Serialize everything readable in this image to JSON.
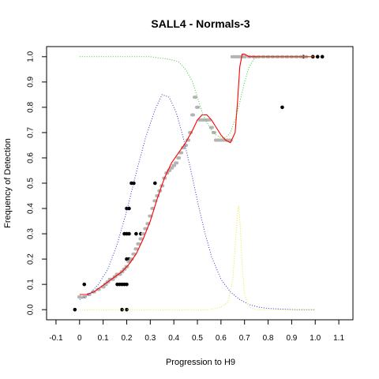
{
  "chart_data": {
    "type": "scatter",
    "title": "SALL4 - Normals-3",
    "xlabel": "Progression to H9",
    "ylabel": "Frequency of Detection",
    "xlim": [
      -0.14,
      1.16
    ],
    "ylim": [
      -0.04,
      1.04
    ],
    "xticks": [
      "-0.1",
      "0",
      "0.1",
      "0.2",
      "0.3",
      "0.4",
      "0.5",
      "0.6",
      "0.7",
      "0.8",
      "0.9",
      "1.0",
      "1.1"
    ],
    "yticks": [
      "0.0",
      "0.1",
      "0.2",
      "0.3",
      "0.4",
      "0.5",
      "0.6",
      "0.7",
      "0.8",
      "0.9",
      "1.0"
    ],
    "grid": false,
    "colors": {
      "black_points": "#000000",
      "gray_points": "#b4b4b4",
      "red_fit": "#ff0000",
      "blue_density": "#3333cc",
      "green_curve": "#33cc33",
      "yellow_curve": "#e6e633"
    },
    "series": [
      {
        "kind": "points",
        "color": "#000000",
        "x": [
          -0.02,
          0.02,
          0.16,
          0.17,
          0.18,
          0.19,
          0.2,
          0.2,
          0.21,
          0.19,
          0.2,
          0.2,
          0.21,
          0.21,
          0.22,
          0.23,
          0.24,
          0.26,
          0.32,
          0.18,
          0.2,
          0.86,
          0.95,
          0.99,
          1.01,
          1.03
        ],
        "y": [
          0.0,
          0.1,
          0.1,
          0.1,
          0.1,
          0.1,
          0.1,
          0.2,
          0.2,
          0.3,
          0.3,
          0.4,
          0.4,
          0.3,
          0.5,
          0.5,
          0.3,
          0.3,
          0.5,
          0.0,
          0.0,
          0.8,
          1.0,
          1.0,
          1.0,
          1.0
        ]
      },
      {
        "kind": "points",
        "color": "#b4b4b4",
        "x": [
          0.0,
          0.02,
          0.04,
          0.06,
          0.08,
          0.1,
          0.11,
          0.12,
          0.13,
          0.14,
          0.15,
          0.16,
          0.17,
          0.18,
          0.19,
          0.2,
          0.21,
          0.22,
          0.23,
          0.24,
          0.25,
          0.26,
          0.27,
          0.28,
          0.29,
          0.3,
          0.31,
          0.32,
          0.33,
          0.34,
          0.35,
          0.36,
          0.37,
          0.38,
          0.39,
          0.4,
          0.41,
          0.42,
          0.43,
          0.44,
          0.45,
          0.46,
          0.47,
          0.48,
          0.49,
          0.5,
          0.51,
          0.52,
          0.53,
          0.54,
          0.55,
          0.56,
          0.57,
          0.58,
          0.59,
          0.6,
          0.61,
          0.62,
          0.63,
          0.64,
          0.65,
          0.66,
          0.67,
          0.68,
          0.69,
          0.7,
          0.72,
          0.74,
          0.76,
          0.78,
          0.8,
          0.82,
          0.84,
          0.86,
          0.88,
          0.9,
          0.92,
          0.94,
          0.96
        ],
        "y": [
          0.05,
          0.05,
          0.06,
          0.07,
          0.08,
          0.09,
          0.1,
          0.11,
          0.12,
          0.12,
          0.13,
          0.14,
          0.14,
          0.15,
          0.16,
          0.17,
          0.19,
          0.2,
          0.22,
          0.24,
          0.26,
          0.28,
          0.3,
          0.32,
          0.34,
          0.37,
          0.4,
          0.43,
          0.45,
          0.47,
          0.49,
          0.52,
          0.54,
          0.55,
          0.56,
          0.57,
          0.58,
          0.6,
          0.62,
          0.64,
          0.65,
          0.67,
          0.7,
          0.77,
          0.84,
          0.8,
          0.75,
          0.75,
          0.75,
          0.75,
          0.75,
          0.72,
          0.7,
          0.67,
          0.67,
          0.67,
          0.67,
          0.67,
          0.67,
          0.67,
          1.0,
          1.0,
          1.0,
          1.0,
          1.0,
          1.0,
          1.0,
          1.0,
          1.0,
          1.0,
          1.0,
          1.0,
          1.0,
          1.0,
          1.0,
          1.0,
          1.0,
          1.0,
          1.0
        ]
      },
      {
        "kind": "line",
        "color": "#ff0000",
        "x": [
          0.0,
          0.03,
          0.06,
          0.09,
          0.12,
          0.15,
          0.18,
          0.21,
          0.24,
          0.27,
          0.3,
          0.33,
          0.36,
          0.39,
          0.42,
          0.45,
          0.48,
          0.5,
          0.52,
          0.54,
          0.56,
          0.58,
          0.6,
          0.62,
          0.64,
          0.66,
          0.67,
          0.68,
          0.69,
          0.7,
          0.72,
          0.75,
          0.8,
          0.9,
          1.0
        ],
        "y": [
          0.06,
          0.06,
          0.07,
          0.09,
          0.11,
          0.13,
          0.15,
          0.18,
          0.22,
          0.28,
          0.35,
          0.44,
          0.52,
          0.58,
          0.62,
          0.66,
          0.71,
          0.75,
          0.77,
          0.77,
          0.75,
          0.72,
          0.69,
          0.67,
          0.66,
          0.7,
          0.82,
          0.96,
          1.01,
          1.01,
          1.0,
          1.0,
          1.0,
          1.0,
          1.0
        ]
      },
      {
        "kind": "dotted-line",
        "color": "#3333cc",
        "x": [
          0.0,
          0.04,
          0.08,
          0.12,
          0.16,
          0.2,
          0.24,
          0.28,
          0.32,
          0.35,
          0.38,
          0.41,
          0.44,
          0.47,
          0.5,
          0.53,
          0.56,
          0.6,
          0.64,
          0.68,
          0.72,
          0.76,
          0.8,
          0.86,
          0.92,
          1.0
        ],
        "y": [
          0.04,
          0.06,
          0.1,
          0.16,
          0.26,
          0.39,
          0.54,
          0.68,
          0.79,
          0.85,
          0.84,
          0.78,
          0.68,
          0.56,
          0.43,
          0.31,
          0.21,
          0.12,
          0.07,
          0.04,
          0.02,
          0.01,
          0.005,
          0.002,
          0.0,
          0.0
        ]
      },
      {
        "kind": "dotted-line",
        "color": "#33cc33",
        "x": [
          0.0,
          0.1,
          0.2,
          0.3,
          0.38,
          0.42,
          0.45,
          0.48,
          0.5,
          0.52,
          0.54,
          0.56,
          0.58,
          0.6,
          0.62,
          0.64,
          0.66,
          0.68,
          0.7,
          0.72,
          0.74,
          0.76,
          0.8,
          0.9,
          1.0
        ],
        "y": [
          1.0,
          1.0,
          1.0,
          1.0,
          0.99,
          0.98,
          0.95,
          0.9,
          0.84,
          0.78,
          0.74,
          0.71,
          0.69,
          0.68,
          0.68,
          0.7,
          0.75,
          0.82,
          0.9,
          0.96,
          0.99,
          1.0,
          1.0,
          1.0,
          1.0
        ]
      },
      {
        "kind": "dotted-line",
        "color": "#e6e633",
        "x": [
          0.0,
          0.2,
          0.4,
          0.55,
          0.6,
          0.63,
          0.65,
          0.66,
          0.67,
          0.675,
          0.68,
          0.69,
          0.7,
          0.72,
          0.75,
          0.8,
          1.0
        ],
        "y": [
          0.0,
          0.0,
          0.0,
          0.0,
          0.01,
          0.03,
          0.12,
          0.25,
          0.38,
          0.41,
          0.36,
          0.18,
          0.06,
          0.01,
          0.0,
          0.0,
          0.0
        ]
      }
    ]
  }
}
